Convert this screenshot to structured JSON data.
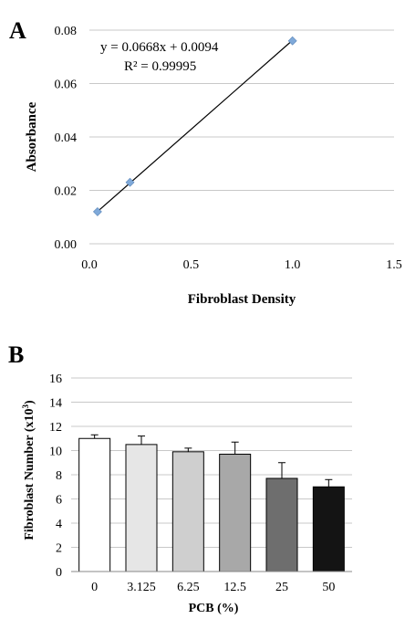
{
  "chart_data": [
    {
      "panel_label": "A",
      "type": "scatter",
      "x": [
        0.04,
        0.2,
        1.0
      ],
      "y": [
        0.012,
        0.023,
        0.076
      ],
      "trendline": {
        "slope": 0.0668,
        "intercept": 0.0094
      },
      "annotations": [
        "y = 0.0668x + 0.0094",
        "R² = 0.99995"
      ],
      "xlabel": "Fibroblast Density",
      "ylabel": "Absorbance",
      "xlim": [
        0,
        1.5
      ],
      "ylim": [
        0,
        0.08
      ],
      "xticks": [
        "0.0",
        "0.5",
        "1.0",
        "1.5"
      ],
      "yticks": [
        "0.00",
        "0.02",
        "0.04",
        "0.06",
        "0.08"
      ],
      "grid": true,
      "point_color": "#7FA9D9",
      "line_color": "#000000"
    },
    {
      "panel_label": "B",
      "type": "bar",
      "categories": [
        "0",
        "3.125",
        "6.25",
        "12.5",
        "25",
        "50"
      ],
      "values": [
        11.0,
        10.5,
        9.9,
        9.7,
        7.7,
        7.0
      ],
      "errors": [
        0.3,
        0.7,
        0.3,
        1.0,
        1.3,
        0.6
      ],
      "bar_colors": [
        "#ffffff",
        "#e6e6e6",
        "#cfcfcf",
        "#a8a8a8",
        "#6e6e6e",
        "#141414"
      ],
      "xlabel": "PCB (%)",
      "ylabel_main": "Fibroblast  Number (x10",
      "ylabel_sup": "3",
      "ylabel_end": ")",
      "ylim": [
        0,
        16
      ],
      "yticks": [
        "0",
        "2",
        "4",
        "6",
        "8",
        "10",
        "12",
        "14",
        "16"
      ],
      "grid": true
    }
  ]
}
